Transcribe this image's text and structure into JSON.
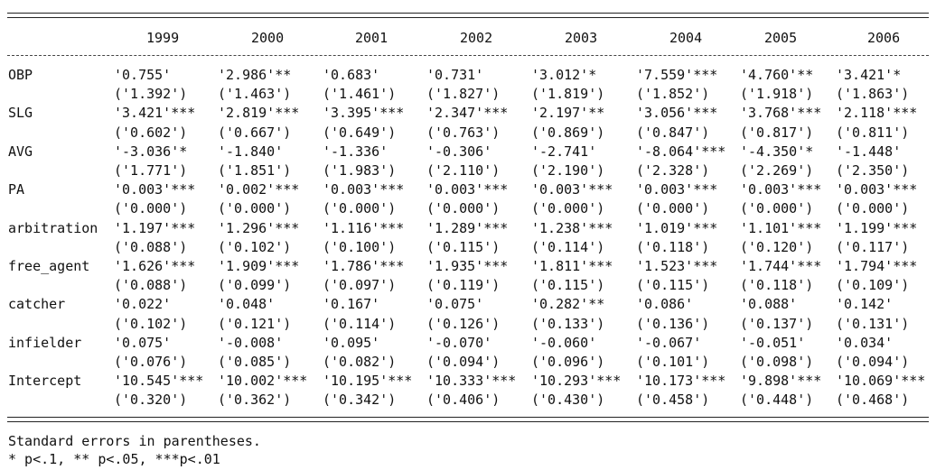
{
  "years": [
    "1999",
    "2000",
    "2001",
    "2002",
    "2003",
    "2004",
    "2005",
    "2006"
  ],
  "rows": [
    {
      "label": "OBP",
      "coef": [
        "'0.755'",
        "'2.986'**",
        "'0.683'",
        "'0.731'",
        "'3.012'*",
        "'7.559'***",
        "'4.760'**",
        "'3.421'*"
      ],
      "se": [
        "('1.392')",
        "('1.463')",
        "('1.461')",
        "('1.827')",
        "('1.819')",
        "('1.852')",
        "('1.918')",
        "('1.863')"
      ]
    },
    {
      "label": "SLG",
      "coef": [
        "'3.421'***",
        "'2.819'***",
        "'3.395'***",
        "'2.347'***",
        "'2.197'**",
        "'3.056'***",
        "'3.768'***",
        "'2.118'***"
      ],
      "se": [
        "('0.602')",
        "('0.667')",
        "('0.649')",
        "('0.763')",
        "('0.869')",
        "('0.847')",
        "('0.817')",
        "('0.811')"
      ]
    },
    {
      "label": "AVG",
      "coef": [
        "'-3.036'*",
        "'-1.840'",
        "'-1.336'",
        "'-0.306'",
        "'-2.741'",
        "'-8.064'***",
        "'-4.350'*",
        "'-1.448'"
      ],
      "se": [
        "('1.771')",
        "('1.851')",
        "('1.983')",
        "('2.110')",
        "('2.190')",
        "('2.328')",
        "('2.269')",
        "('2.350')"
      ]
    },
    {
      "label": "PA",
      "coef": [
        "'0.003'***",
        "'0.002'***",
        "'0.003'***",
        "'0.003'***",
        "'0.003'***",
        "'0.003'***",
        "'0.003'***",
        "'0.003'***"
      ],
      "se": [
        "('0.000')",
        "('0.000')",
        "('0.000')",
        "('0.000')",
        "('0.000')",
        "('0.000')",
        "('0.000')",
        "('0.000')"
      ]
    },
    {
      "label": "arbitration",
      "coef": [
        "'1.197'***",
        "'1.296'***",
        "'1.116'***",
        "'1.289'***",
        "'1.238'***",
        "'1.019'***",
        "'1.101'***",
        "'1.199'***"
      ],
      "se": [
        "('0.088')",
        "('0.102')",
        "('0.100')",
        "('0.115')",
        "('0.114')",
        "('0.118')",
        "('0.120')",
        "('0.117')"
      ]
    },
    {
      "label": "free_agent",
      "coef": [
        "'1.626'***",
        "'1.909'***",
        "'1.786'***",
        "'1.935'***",
        "'1.811'***",
        "'1.523'***",
        "'1.744'***",
        "'1.794'***"
      ],
      "se": [
        "('0.088')",
        "('0.099')",
        "('0.097')",
        "('0.119')",
        "('0.115')",
        "('0.115')",
        "('0.118')",
        "('0.109')"
      ]
    },
    {
      "label": "catcher",
      "coef": [
        "'0.022'",
        "'0.048'",
        "'0.167'",
        "'0.075'",
        "'0.282'**",
        "'0.086'",
        "'0.088'",
        "'0.142'"
      ],
      "se": [
        "('0.102')",
        "('0.121')",
        "('0.114')",
        "('0.126')",
        "('0.133')",
        "('0.136')",
        "('0.137')",
        "('0.131')"
      ]
    },
    {
      "label": "infielder",
      "coef": [
        "'0.075'",
        "'-0.008'",
        "'0.095'",
        "'-0.070'",
        "'-0.060'",
        "'-0.067'",
        "'-0.051'",
        "'0.034'"
      ],
      "se": [
        "('0.076')",
        "('0.085')",
        "('0.082')",
        "('0.094')",
        "('0.096')",
        "('0.101')",
        "('0.098')",
        "('0.094')"
      ]
    },
    {
      "label": "Intercept",
      "coef": [
        "'10.545'***",
        "'10.002'***",
        "'10.195'***",
        "'10.333'***",
        "'10.293'***",
        "'10.173'***",
        "'9.898'***",
        "'10.069'***"
      ],
      "se": [
        "('0.320')",
        "('0.362')",
        "('0.342')",
        "('0.406')",
        "('0.430')",
        "('0.458')",
        "('0.448')",
        "('0.468')"
      ]
    }
  ],
  "notes": [
    "Standard errors in parentheses.",
    "* p<.1, ** p<.05, ***p<.01"
  ]
}
